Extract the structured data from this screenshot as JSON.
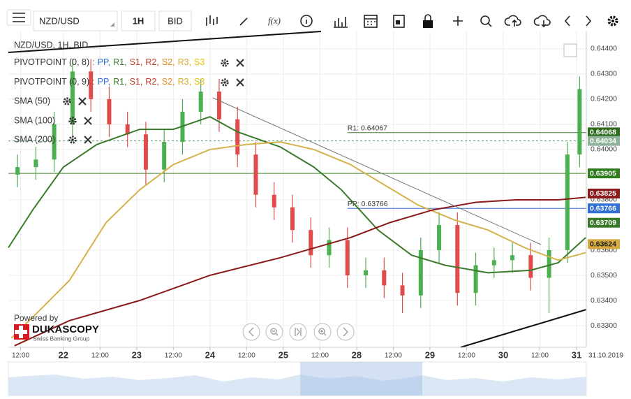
{
  "toolbar": {
    "symbol": "NZD/USD",
    "timeframe": "1H",
    "side": "BID",
    "function_icon": "f(x)"
  },
  "legend": {
    "pivots": [
      {
        "name": "PIVOTPOINT (0, 8)",
        "parts": [
          {
            "text": ":",
            "color": "#666"
          },
          {
            "text": "PP,",
            "color": "#2f6fd6"
          },
          {
            "text": "R1,",
            "color": "#3a7a2a"
          },
          {
            "text": "S1,",
            "color": "#c0392b"
          },
          {
            "text": "R2,",
            "color": "#c0392b"
          },
          {
            "text": "S2,",
            "color": "#e08a1e"
          },
          {
            "text": "R3,",
            "color": "#d4a82c"
          },
          {
            "text": "S3",
            "color": "#e6c200"
          }
        ]
      },
      {
        "name": "PIVOTPOINT (0, 9)",
        "parts": [
          {
            "text": ":",
            "color": "#666"
          },
          {
            "text": "PP,",
            "color": "#2f6fd6"
          },
          {
            "text": "R1,",
            "color": "#3a7a2a"
          },
          {
            "text": "S1,",
            "color": "#c0392b"
          },
          {
            "text": "R2,",
            "color": "#c0392b"
          },
          {
            "text": "S2,",
            "color": "#e08a1e"
          },
          {
            "text": "R3,",
            "color": "#d4a82c"
          },
          {
            "text": "S3",
            "color": "#e6c200"
          }
        ]
      }
    ]
  },
  "branding": {
    "powered_by": "Powered by",
    "name": "DUKASCOPY",
    "tagline": "Swiss Banking Group"
  },
  "chart_data": {
    "type": "candlestick",
    "title": "NZD/USD, 1H, BID",
    "x": [
      -15,
      -9,
      -3,
      3,
      9,
      15,
      21,
      27,
      33,
      39,
      45,
      51,
      57,
      63,
      69,
      75,
      81,
      87,
      93,
      99,
      105,
      111,
      117,
      123,
      129,
      135,
      141,
      147,
      153,
      159,
      165,
      169
    ],
    "open": [
      0.639,
      0.6393,
      0.6396,
      0.641,
      0.6431,
      0.642,
      0.641,
      0.6406,
      0.6392,
      0.6403,
      0.6415,
      0.6423,
      0.6412,
      0.6398,
      0.6382,
      0.6377,
      0.6368,
      0.6358,
      0.6364,
      0.635,
      0.6352,
      0.6346,
      0.6342,
      0.636,
      0.637,
      0.6343,
      0.6354,
      0.6356,
      0.6358,
      0.6349,
      0.636,
      0.6398
    ],
    "high": [
      0.6398,
      0.6401,
      0.6415,
      0.6436,
      0.6436,
      0.6425,
      0.6415,
      0.6411,
      0.6408,
      0.642,
      0.6428,
      0.6428,
      0.6417,
      0.6403,
      0.6387,
      0.6382,
      0.6373,
      0.6369,
      0.6369,
      0.6357,
      0.6357,
      0.6351,
      0.6365,
      0.6375,
      0.6375,
      0.6359,
      0.6361,
      0.6363,
      0.6363,
      0.6365,
      0.6403,
      0.6429
    ],
    "low": [
      0.6385,
      0.6388,
      0.6391,
      0.6405,
      0.6415,
      0.6405,
      0.6401,
      0.6386,
      0.6387,
      0.6398,
      0.641,
      0.6407,
      0.6393,
      0.6377,
      0.6372,
      0.6363,
      0.6353,
      0.6353,
      0.6345,
      0.6345,
      0.6341,
      0.6335,
      0.6337,
      0.6355,
      0.6338,
      0.6338,
      0.6349,
      0.6351,
      0.6344,
      0.6335,
      0.6355,
      0.6393
    ],
    "close": [
      0.6393,
      0.6396,
      0.641,
      0.6431,
      0.642,
      0.641,
      0.6406,
      0.6392,
      0.6403,
      0.6415,
      0.6423,
      0.6412,
      0.6398,
      0.6382,
      0.6377,
      0.6368,
      0.6358,
      0.6364,
      0.635,
      0.6352,
      0.6346,
      0.6342,
      0.636,
      0.637,
      0.6343,
      0.6354,
      0.6356,
      0.6358,
      0.6349,
      0.636,
      0.6398,
      0.6424
    ],
    "up_color": "#4caf50",
    "down_color": "#e04b4b",
    "series": [
      {
        "name": "SMA (50)",
        "color": "#3a7a2a",
        "x": [
          -18,
          -10,
          0,
          11,
          25,
          36,
          48,
          57,
          71,
          82,
          91,
          103,
          114,
          125,
          139,
          153,
          162,
          171
        ],
        "values": [
          0.6361,
          0.6376,
          0.6393,
          0.6402,
          0.6408,
          0.6408,
          0.6413,
          0.6407,
          0.6401,
          0.6393,
          0.6384,
          0.6368,
          0.6358,
          0.6354,
          0.6351,
          0.6352,
          0.6355,
          0.6365
        ]
      },
      {
        "name": "SMA (100)",
        "color": "#d4b24c",
        "x": [
          -17,
          -7,
          2,
          14,
          25,
          36,
          48,
          60,
          71,
          82,
          94,
          105,
          116,
          128,
          139,
          151,
          162,
          171
        ],
        "values": [
          0.6325,
          0.6337,
          0.6348,
          0.6371,
          0.6384,
          0.6394,
          0.64,
          0.6402,
          0.6403,
          0.64,
          0.6394,
          0.6386,
          0.6378,
          0.6372,
          0.6368,
          0.6361,
          0.6356,
          0.6359
        ]
      },
      {
        "name": "SMA (200)",
        "color": "#8b1a1a",
        "x": [
          -16,
          2,
          25,
          48,
          71,
          94,
          107,
          121,
          135,
          148,
          162,
          171
        ],
        "values": [
          0.6322,
          0.6332,
          0.634,
          0.635,
          0.6357,
          0.6365,
          0.6371,
          0.6376,
          0.6379,
          0.638,
          0.638,
          0.6381
        ]
      }
    ],
    "levels": [
      {
        "label": "R1: 0.64067",
        "value": 0.64067,
        "color": "#3a7a2a",
        "start": 93
      },
      {
        "label": "PP: 0.63766",
        "value": 0.63766,
        "color": "#2f6fd6",
        "start": 93
      },
      {
        "value": 0.63905,
        "color": "#3f8a2a"
      },
      {
        "value": 0.64034,
        "color": "#5a9a6a",
        "dashed": true
      }
    ],
    "price_tags": [
      {
        "value": 0.64068,
        "color": "#2e6b1f"
      },
      {
        "value": 0.64034,
        "color": "#8fb39a"
      },
      {
        "value": 0.63905,
        "color": "#2e7d1a"
      },
      {
        "value": 0.63825,
        "color": "#8b1a1a"
      },
      {
        "value": 0.63766,
        "color": "#2f6fd6"
      },
      {
        "value": 0.63709,
        "color": "#3a7a2a"
      },
      {
        "value": 0.63624,
        "color": "#d4aa40"
      }
    ],
    "xlim": [
      -18,
      171.2
    ],
    "xticks": [
      {
        "value": -14,
        "label": "12:00"
      },
      {
        "value": 0,
        "label": "22"
      },
      {
        "value": 12,
        "label": "12:00"
      },
      {
        "value": 24,
        "label": "23"
      },
      {
        "value": 36,
        "label": "12:00"
      },
      {
        "value": 48,
        "label": "24"
      },
      {
        "value": 60,
        "label": "12:00"
      },
      {
        "value": 72,
        "label": "25"
      },
      {
        "value": 84,
        "label": "12:00"
      },
      {
        "value": 96,
        "label": "28"
      },
      {
        "value": 108,
        "label": "12:00"
      },
      {
        "value": 120,
        "label": "29"
      },
      {
        "value": 132,
        "label": "12:00"
      },
      {
        "value": 144,
        "label": "30"
      },
      {
        "value": 156,
        "label": "12:00"
      },
      {
        "value": 168,
        "label": "31"
      }
    ],
    "date_label": "31.10.2019",
    "ylim": [
      0.63214,
      0.64469
    ],
    "yticks": [
      {
        "value": 0.644,
        "label": "0.64400"
      },
      {
        "value": 0.643,
        "label": "0.64300"
      },
      {
        "value": 0.642,
        "label": "0.64200"
      },
      {
        "value": 0.641,
        "label": "0.64100"
      },
      {
        "value": 0.64,
        "label": "0.64000"
      },
      {
        "value": 0.638,
        "label": "0.63800"
      },
      {
        "value": 0.636,
        "label": "0.63600"
      },
      {
        "value": 0.635,
        "label": "0.63500"
      },
      {
        "value": 0.634,
        "label": "0.63400"
      },
      {
        "value": 0.633,
        "label": "0.63300"
      }
    ],
    "grid": true
  }
}
